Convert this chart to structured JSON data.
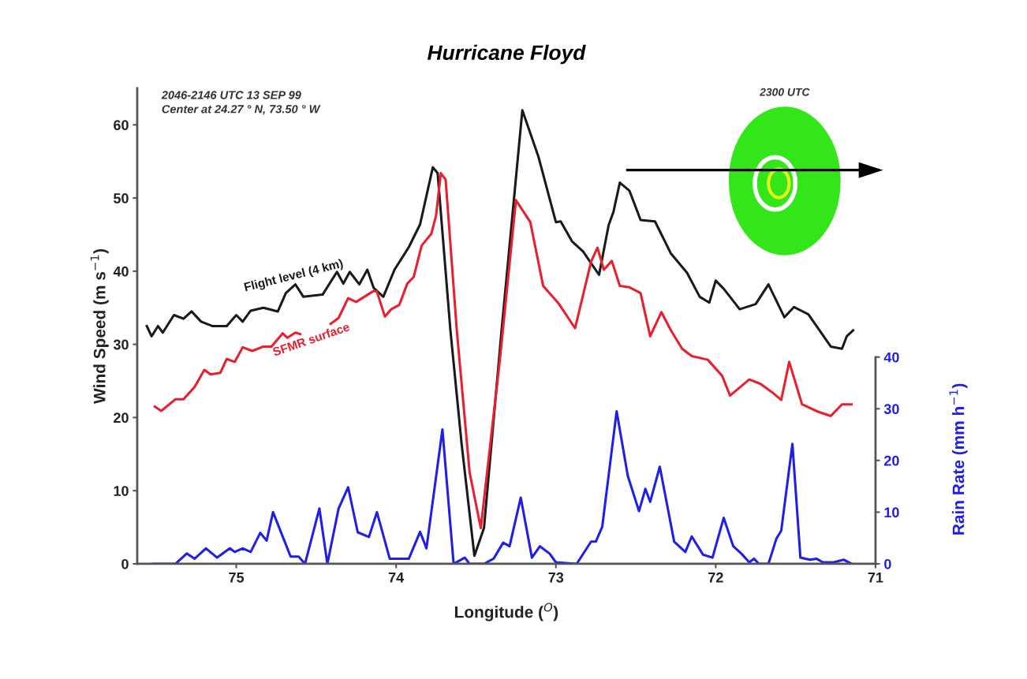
{
  "chart_data": {
    "type": "line",
    "title": "Hurricane Floyd",
    "xlabel": "Longitude ($^{O}$)",
    "ylabel": "Wind Speed (m s$^{−1}$)",
    "y2label": "Rain Rate (mm h$^{−1}$)",
    "annotations": [
      "2046-2146 UTC 13 SEP 99\nCenter at 24.27 ° N, 73.50 ° W",
      "2300 UTC"
    ],
    "xlim": [
      75.62,
      71
    ],
    "xticks": [
      75,
      74,
      73,
      72,
      71
    ],
    "ylim": [
      0,
      65
    ],
    "yticks": [
      0,
      10,
      20,
      30,
      40,
      50,
      60
    ],
    "y2lim": [
      0,
      92
    ],
    "y2ticks": [
      0,
      10,
      20,
      30,
      40
    ],
    "grid": false,
    "legend": false,
    "marker": "none",
    "line_style": "solid",
    "series": [
      {
        "name": "Flight level (4 km)",
        "color": "#1a1a1a",
        "x": [
          75.56,
          75.53,
          75.49,
          75.46,
          75.39,
          75.33,
          75.28,
          75.22,
          75.15,
          75.06,
          75.0,
          74.96,
          74.91,
          74.83,
          74.74,
          74.69,
          74.63,
          74.58,
          74.46,
          74.37,
          74.33,
          74.29,
          74.23,
          74.18,
          74.14,
          74.08,
          74.01,
          73.92,
          73.85,
          73.77,
          73.74,
          73.66,
          73.59,
          73.51,
          73.45,
          73.34,
          73.21,
          73.11,
          73.0,
          72.97,
          72.9,
          72.83,
          72.73,
          72.67,
          72.64,
          72.6,
          72.54,
          72.47,
          72.38,
          72.28,
          72.18,
          72.1,
          72.04,
          72.0,
          71.95,
          71.85,
          71.75,
          71.67,
          71.57,
          71.51,
          71.42,
          71.28,
          71.21,
          71.18,
          71.14
        ],
        "values": [
          32.5,
          31.1,
          32.5,
          31.6,
          34,
          33.5,
          34.5,
          33.1,
          32.5,
          32.5,
          34,
          33.1,
          34.6,
          35,
          34.5,
          37,
          38.2,
          36.5,
          36.8,
          39.9,
          38.3,
          39.9,
          38.2,
          40.2,
          37.7,
          36.5,
          40.2,
          43.3,
          46.4,
          54.2,
          53.4,
          31.9,
          16.4,
          1.1,
          4.9,
          31.9,
          62,
          55.7,
          46.7,
          46.8,
          44.1,
          42.7,
          39.5,
          46.3,
          48.1,
          52.1,
          51,
          47,
          46.8,
          42.4,
          39.8,
          36.5,
          35.7,
          38.7,
          37.6,
          34.8,
          35.5,
          38.2,
          33.7,
          35.1,
          34.1,
          29.7,
          29.4,
          31.1,
          31.9
        ]
      },
      {
        "name": "SFMR surface",
        "color": "#e8202e",
        "x": [
          75.51,
          75.47,
          75.38,
          75.33,
          75.26,
          75.2,
          75.16,
          75.1,
          75.06,
          75.01,
          74.96,
          74.9,
          74.83,
          74.78,
          74.71,
          74.68,
          74.63,
          74.6,
          74.5,
          74.41,
          74.36,
          74.3,
          74.25,
          74.14,
          74.12,
          74.07,
          74.03,
          73.98,
          73.93,
          73.89,
          73.84,
          73.78,
          73.75,
          73.72,
          73.69,
          73.62,
          73.54,
          73.47,
          73.35,
          73.25,
          73.16,
          73.08,
          72.98,
          72.88,
          72.78,
          72.74,
          72.7,
          72.65,
          72.6,
          72.54,
          72.47,
          72.41,
          72.34,
          72.28,
          72.21,
          72.15,
          72.05,
          71.96,
          71.91,
          71.79,
          71.72,
          71.65,
          71.59,
          71.54,
          71.46,
          71.36,
          71.28,
          71.21,
          71.15
        ],
        "values": [
          21.5,
          20.9,
          22.5,
          22.5,
          24.2,
          26.5,
          25.9,
          26.1,
          28,
          27.6,
          29.6,
          29.1,
          29.7,
          29.7,
          31.5,
          30.9,
          31.6,
          31.4,
          null,
          32.8,
          33.6,
          36.3,
          35.8,
          37.3,
          37.2,
          33.8,
          34.8,
          35.4,
          38.3,
          39.2,
          43.5,
          45.1,
          47.6,
          53.4,
          52.5,
          31.9,
          12.5,
          4.9,
          28,
          49.7,
          46.7,
          38,
          35.5,
          32.2,
          41.3,
          43.2,
          40.2,
          41.4,
          38,
          37.8,
          37,
          31.1,
          34.4,
          31.9,
          29.4,
          28.4,
          27.9,
          25.7,
          23,
          25.2,
          24.6,
          23.5,
          22.4,
          27.6,
          21.8,
          20.8,
          20.2,
          21.8,
          21.8
        ]
      },
      {
        "color": "#1f1fe8",
        "axis": "y2",
        "x": [
          75.52,
          75.38,
          75.31,
          75.26,
          75.19,
          75.12,
          75.04,
          75.01,
          74.96,
          74.91,
          74.85,
          74.81,
          74.77,
          74.66,
          74.61,
          74.57,
          74.48,
          74.43,
          74.36,
          74.3,
          74.24,
          74.17,
          74.12,
          74.04,
          73.92,
          73.85,
          73.81,
          73.71,
          73.64,
          73.57,
          73.54,
          73.45,
          73.39,
          73.33,
          73.29,
          73.22,
          73.15,
          73.1,
          73.04,
          73.0,
          72.87,
          72.78,
          72.75,
          72.71,
          72.62,
          72.55,
          72.48,
          72.44,
          72.41,
          72.35,
          72.26,
          72.19,
          72.15,
          72.08,
          72.02,
          71.95,
          71.89,
          71.84,
          71.79,
          71.76,
          71.73,
          71.67,
          71.62,
          71.59,
          71.52,
          71.47,
          71.41,
          71.37,
          71.33,
          71.26,
          71.2,
          71.15
        ],
        "values": [
          0,
          0,
          2,
          1,
          3,
          1.2,
          3,
          2.3,
          3,
          2.3,
          6,
          4.5,
          10,
          1.4,
          1.4,
          0,
          10.7,
          0,
          10.7,
          14.8,
          6.1,
          5.2,
          10,
          1,
          1,
          6.2,
          3,
          26,
          0,
          1.2,
          0,
          0,
          1,
          4.1,
          3.4,
          12.8,
          1.2,
          3.4,
          2,
          0.3,
          0,
          4.3,
          4.3,
          7.2,
          29.5,
          17,
          10.2,
          14.5,
          12,
          18.8,
          4.3,
          2.3,
          5.3,
          1.8,
          1.2,
          8.9,
          3.4,
          2,
          0.3,
          1,
          0,
          0,
          4.9,
          6.4,
          23.2,
          1.2,
          0.8,
          1,
          0.3,
          0.3,
          0.8,
          0
        ]
      }
    ]
  }
}
